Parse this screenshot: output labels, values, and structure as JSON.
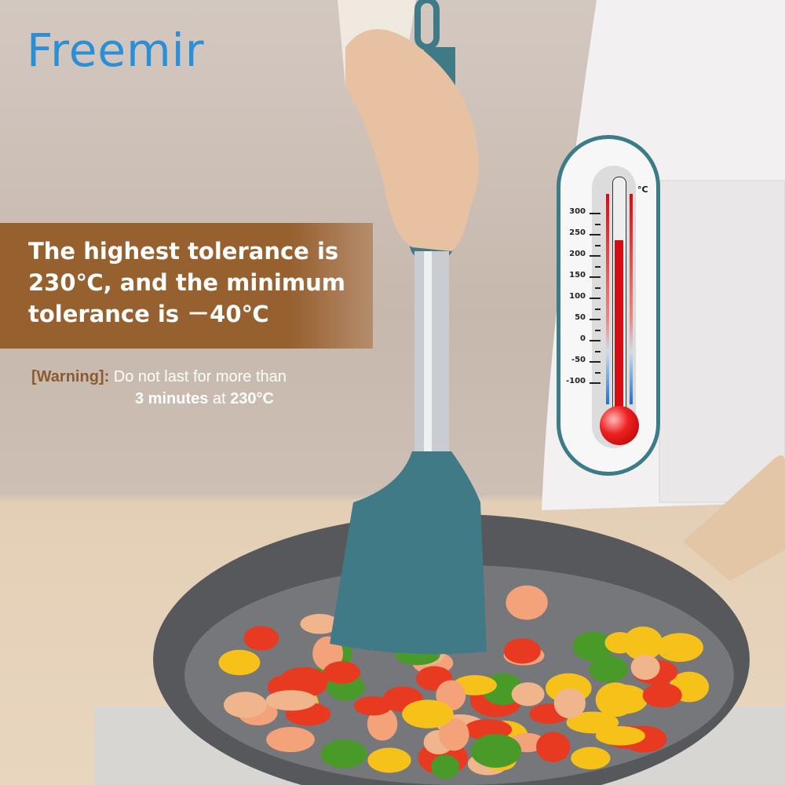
{
  "brand": {
    "logo_text": "Freemir",
    "logo_color": "#2a8fd6"
  },
  "headline": {
    "line1": "The highest tolerance is",
    "line2": "230℃, and the minimum",
    "line3": "tolerance is  －40℃",
    "banner_color": "#97602f"
  },
  "warning": {
    "label": "[Warning]:",
    "text_line1": "Do not last for more than",
    "duration": "3 minutes",
    "at": "at",
    "temperature": "230°C"
  },
  "thermometer": {
    "unit": "°C",
    "scale": [
      "300",
      "250",
      "200",
      "150",
      "100",
      "50",
      "0",
      "-50",
      "-100"
    ],
    "level_celsius": 235,
    "frame_color": "#3b7c88",
    "fluid_color": "#d40d12"
  },
  "colors": {
    "spatula": "#3f7a86",
    "pan": "#5d5d5f"
  }
}
